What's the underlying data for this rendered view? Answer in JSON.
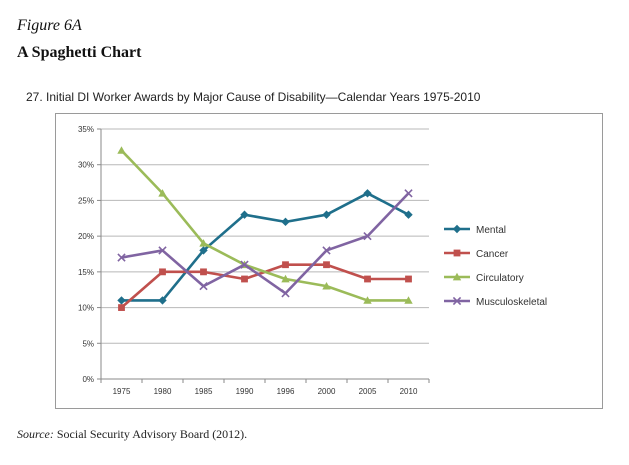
{
  "figure_label": "Figure 6A",
  "figure_title": "A Spaghetti Chart",
  "chart_caption": "27.  Initial DI Worker Awards by Major Cause of Disability—Calendar Years 1975-2010",
  "source": {
    "label": "Source:",
    "text": " Social Security Advisory Board (2012)."
  },
  "chart_data": {
    "type": "line",
    "title": "",
    "xlabel": "",
    "ylabel": "",
    "categories": [
      "1975",
      "1980",
      "1985",
      "1990",
      "1996",
      "2000",
      "2005",
      "2010"
    ],
    "ylim": [
      0,
      35
    ],
    "yticks": [
      0,
      5,
      10,
      15,
      20,
      25,
      30,
      35
    ],
    "ytick_labels": [
      "0%",
      "5%",
      "10%",
      "15%",
      "20%",
      "25%",
      "30%",
      "35%"
    ],
    "grid": true,
    "legend_position": "right",
    "series": [
      {
        "name": "Mental",
        "color": "#1f6f8b",
        "marker": "diamond",
        "values": [
          11,
          11,
          18,
          23,
          22,
          23,
          26,
          23
        ]
      },
      {
        "name": "Cancer",
        "color": "#c0504d",
        "marker": "square",
        "values": [
          10,
          15,
          15,
          14,
          16,
          16,
          14,
          14
        ]
      },
      {
        "name": "Circulatory",
        "color": "#9bbb59",
        "marker": "triangle",
        "values": [
          32,
          26,
          19,
          16,
          14,
          13,
          11,
          11
        ]
      },
      {
        "name": "Musculoskeletal",
        "color": "#8064a2",
        "marker": "x",
        "values": [
          17,
          18,
          13,
          16,
          12,
          18,
          20,
          26
        ]
      }
    ]
  }
}
